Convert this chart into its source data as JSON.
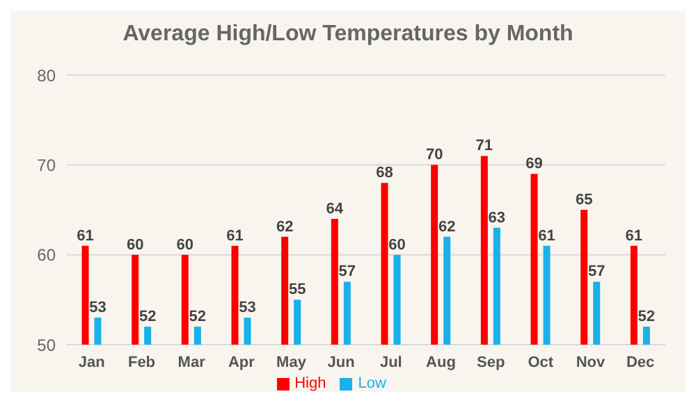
{
  "chart_data": {
    "type": "bar",
    "title": "Average High/Low Temperatures by Month",
    "categories": [
      "Jan",
      "Feb",
      "Mar",
      "Apr",
      "May",
      "Jun",
      "Jul",
      "Aug",
      "Sep",
      "Oct",
      "Nov",
      "Dec"
    ],
    "series": [
      {
        "name": "High",
        "color": "#ff0000",
        "values": [
          61,
          60,
          60,
          61,
          62,
          64,
          68,
          70,
          71,
          69,
          65,
          61
        ]
      },
      {
        "name": "Low",
        "color": "#1ab0ea",
        "values": [
          53,
          52,
          52,
          53,
          55,
          57,
          60,
          62,
          63,
          61,
          57,
          52
        ]
      }
    ],
    "ylim": [
      50,
      80
    ],
    "yticks": [
      50,
      60,
      70,
      80
    ],
    "grid": "y",
    "legend": "bottom",
    "data_labels": true
  }
}
